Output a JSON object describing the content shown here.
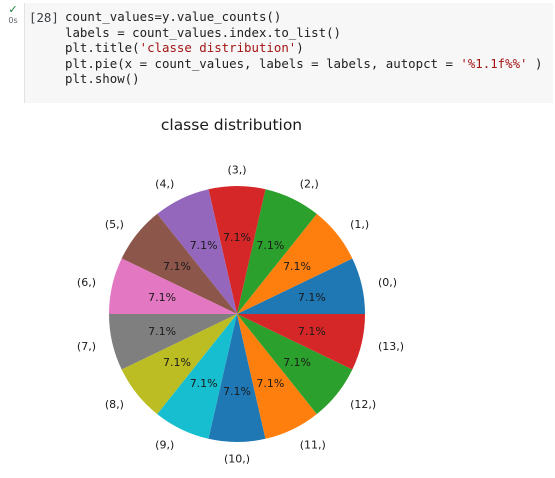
{
  "cell": {
    "status_icon": "check-icon",
    "status_color": "#188038",
    "exec_time": "0s",
    "exec_count": "[28]",
    "code_lines": [
      [
        {
          "t": "count_values=y.value_counts()"
        }
      ],
      [
        {
          "t": "labels = count_values.index.to_list()"
        }
      ],
      [
        {
          "t": "plt.title("
        },
        {
          "t": "'classe distribution'",
          "k": "str"
        },
        {
          "t": ")"
        }
      ],
      [
        {
          "t": "plt.pie(x = count_values, labels = labels, autopct = "
        },
        {
          "t": "'%1.1f%%'",
          "k": "str"
        },
        {
          "t": " )"
        }
      ],
      [
        {
          "t": "plt.show()"
        }
      ]
    ]
  },
  "chart_data": {
    "type": "pie",
    "title": "classe distribution",
    "labels": [
      "(0,)",
      "(1,)",
      "(2,)",
      "(3,)",
      "(4,)",
      "(5,)",
      "(6,)",
      "(7,)",
      "(8,)",
      "(9,)",
      "(10,)",
      "(11,)",
      "(12,)",
      "(13,)"
    ],
    "values": [
      1,
      1,
      1,
      1,
      1,
      1,
      1,
      1,
      1,
      1,
      1,
      1,
      1,
      1
    ],
    "autopct_labels": [
      "7.1%",
      "7.1%",
      "7.1%",
      "7.1%",
      "7.1%",
      "7.1%",
      "7.1%",
      "7.1%",
      "7.1%",
      "7.1%",
      "7.1%",
      "7.1%",
      "7.1%",
      "7.1%"
    ],
    "colors": [
      "#1f77b4",
      "#ff7f0e",
      "#2ca02c",
      "#d62728",
      "#9467bd",
      "#8c564b",
      "#e377c2",
      "#7f7f7f",
      "#bcbd22",
      "#17becf",
      "#1f77b4",
      "#ff7f0e",
      "#2ca02c",
      "#d62728"
    ],
    "start_angle_deg": 0,
    "direction": "counterclockwise"
  }
}
